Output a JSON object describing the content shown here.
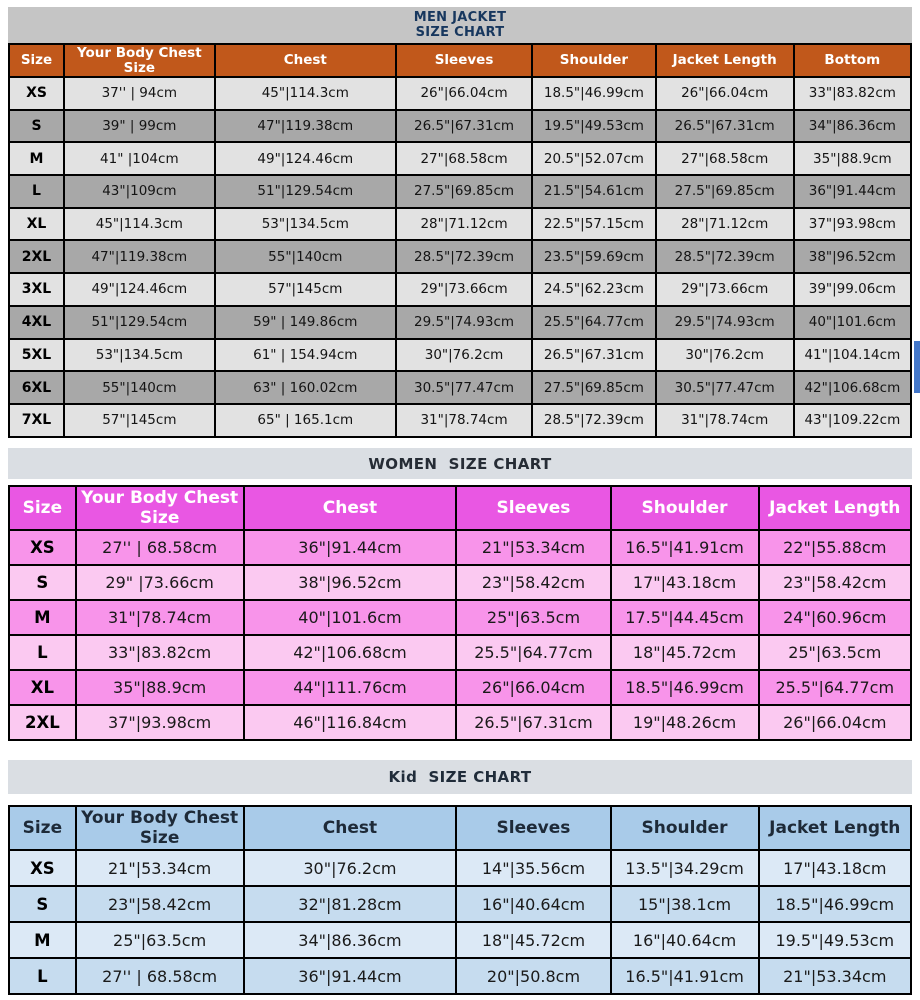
{
  "men_chart": {
    "title_lines": [
      "MEN JACKET",
      "SIZE CHART"
    ],
    "columns": [
      "Size",
      "Your Body Chest Size",
      "Chest",
      "Sleeves",
      "Shoulder",
      "Jacket Length",
      "Bottom"
    ],
    "rows": [
      [
        "XS",
        "37'' | 94cm",
        "45\"|114.3cm",
        "26\"|66.04cm",
        "18.5\"|46.99cm",
        "26\"|66.04cm",
        "33\"|83.82cm"
      ],
      [
        "S",
        "39\" | 99cm",
        "47\"|119.38cm",
        "26.5\"|67.31cm",
        "19.5\"|49.53cm",
        "26.5\"|67.31cm",
        "34\"|86.36cm"
      ],
      [
        "M",
        "41\" |104cm",
        "49\"|124.46cm",
        "27\"|68.58cm",
        "20.5\"|52.07cm",
        "27\"|68.58cm",
        "35\"|88.9cm"
      ],
      [
        "L",
        "43\"|109cm",
        "51\"|129.54cm",
        "27.5\"|69.85cm",
        "21.5\"|54.61cm",
        "27.5\"|69.85cm",
        "36\"|91.44cm"
      ],
      [
        "XL",
        "45\"|114.3cm",
        "53\"|134.5cm",
        "28\"|71.12cm",
        "22.5\"|57.15cm",
        "28\"|71.12cm",
        "37\"|93.98cm"
      ],
      [
        "2XL",
        "47\"|119.38cm",
        "55\"|140cm",
        "28.5\"|72.39cm",
        "23.5\"|59.69cm",
        "28.5\"|72.39cm",
        "38\"|96.52cm"
      ],
      [
        "3XL",
        "49\"|124.46cm",
        "57\"|145cm",
        "29\"|73.66cm",
        "24.5\"|62.23cm",
        "29\"|73.66cm",
        "39\"|99.06cm"
      ],
      [
        "4XL",
        "51\"|129.54cm",
        "59\" | 149.86cm",
        "29.5\"|74.93cm",
        "25.5\"|64.77cm",
        "29.5\"|74.93cm",
        "40\"|101.6cm"
      ],
      [
        "5XL",
        "53\"|134.5cm",
        "61\" | 154.94cm",
        "30\"|76.2cm",
        "26.5\"|67.31cm",
        "30\"|76.2cm",
        "41\"|104.14cm"
      ],
      [
        "6XL",
        "55\"|140cm",
        "63\" | 160.02cm",
        "30.5\"|77.47cm",
        "27.5\"|69.85cm",
        "30.5\"|77.47cm",
        "42\"|106.68cm"
      ],
      [
        "7XL",
        "57\"|145cm",
        "65\" | 165.1cm",
        "31\"|78.74cm",
        "28.5\"|72.39cm",
        "31\"|78.74cm",
        "43\"|109.22cm"
      ]
    ],
    "colors": {
      "header_bg": "#C1581B",
      "header_text": "#FFFFFF",
      "row_light": "#E2E2E2",
      "row_dark": "#A8A8A8",
      "banner_bg": "#C5C5C5",
      "title_text": "#17375E"
    }
  },
  "women_chart": {
    "title": "WOMEN  SIZE CHART",
    "columns": [
      "Size",
      "Your Body Chest Size",
      "Chest",
      "Sleeves",
      "Shoulder",
      "Jacket Length"
    ],
    "rows": [
      [
        "XS",
        "27'' | 68.58cm",
        "36\"|91.44cm",
        "21\"|53.34cm",
        "16.5\"|41.91cm",
        "22\"|55.88cm"
      ],
      [
        "S",
        "29\" |73.66cm",
        "38\"|96.52cm",
        "23\"|58.42cm",
        "17\"|43.18cm",
        "23\"|58.42cm"
      ],
      [
        "M",
        "31\"|78.74cm",
        "40\"|101.6cm",
        "25\"|63.5cm",
        "17.5\"|44.45cm",
        "24\"|60.96cm"
      ],
      [
        "L",
        "33\"|83.82cm",
        "42\"|106.68cm",
        "25.5\"|64.77cm",
        "18\"|45.72cm",
        "25\"|63.5cm"
      ],
      [
        "XL",
        "35\"|88.9cm",
        "44\"|111.76cm",
        "26\"|66.04cm",
        "18.5\"|46.99cm",
        "25.5\"|64.77cm"
      ],
      [
        "2XL",
        "37\"|93.98cm",
        "46\"|116.84cm",
        "26.5\"|67.31cm",
        "19\"|48.26cm",
        "26\"|66.04cm"
      ]
    ],
    "colors": {
      "header_bg": "#E957E3",
      "header_text": "#FFFFFF",
      "row_dark": "#F894EA",
      "row_light": "#FBC9F1",
      "banner_bg": "#DADEE3",
      "title_text": "#262C35"
    }
  },
  "kid_chart": {
    "title": "Kid  SIZE CHART",
    "columns": [
      "Size",
      "Your Body Chest Size",
      "Chest",
      "Sleeves",
      "Shoulder",
      "Jacket Length"
    ],
    "rows": [
      [
        "XS",
        "21\"|53.34cm",
        "30\"|76.2cm",
        "14\"|35.56cm",
        "13.5\"|34.29cm",
        "17\"|43.18cm"
      ],
      [
        "S",
        "23\"|58.42cm",
        "32\"|81.28cm",
        "16\"|40.64cm",
        "15\"|38.1cm",
        "18.5\"|46.99cm"
      ],
      [
        "M",
        "25\"|63.5cm",
        "34\"|86.36cm",
        "18\"|45.72cm",
        "16\"|40.64cm",
        "19.5\"|49.53cm"
      ],
      [
        "L",
        "27'' | 68.58cm",
        "36\"|91.44cm",
        "20\"|50.8cm",
        "16.5\"|41.91cm",
        "21\"|53.34cm"
      ]
    ],
    "colors": {
      "header_bg": "#A9CBE9",
      "header_text": "#1E2A38",
      "row_light": "#DCE9F6",
      "row_dark": "#C6DCEF",
      "banner_bg": "#DADEE3",
      "title_text": "#202C3A"
    }
  },
  "edge_artifact_color": "#4377C9"
}
